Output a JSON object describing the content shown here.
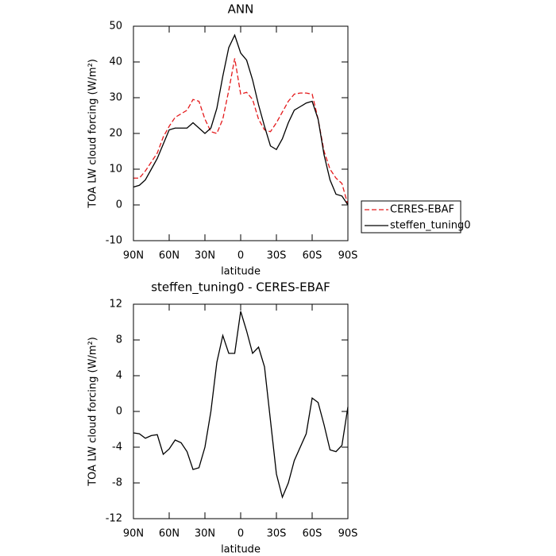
{
  "chart_data": [
    {
      "type": "line",
      "title": "ANN",
      "xlabel": "latitude",
      "ylabel": "TOA LW cloud forcing (W/m²)",
      "x": [
        90,
        85,
        80,
        75,
        70,
        65,
        60,
        55,
        50,
        45,
        40,
        35,
        30,
        25,
        20,
        15,
        10,
        5,
        0,
        -5,
        -10,
        -15,
        -20,
        -25,
        -30,
        -35,
        -40,
        -45,
        -50,
        -55,
        -60,
        -65,
        -70,
        -75,
        -80,
        -85,
        -90
      ],
      "series": [
        {
          "name": "CERES-EBAF",
          "color": "#e41a1c",
          "dashed": true,
          "values": [
            7.5,
            7.5,
            9.5,
            12,
            14.5,
            19,
            22,
            24.5,
            25.5,
            26.5,
            29.5,
            29,
            24,
            20.5,
            20,
            24,
            32,
            41,
            31,
            31.5,
            29.5,
            24,
            21,
            20.5,
            23,
            26,
            29,
            31,
            31.3,
            31.3,
            31,
            24,
            15,
            10,
            7.5,
            6,
            0
          ]
        },
        {
          "name": "steffen_tuning0",
          "color": "#000000",
          "dashed": false,
          "values": [
            5,
            5.5,
            7,
            10,
            13,
            17,
            21,
            21.5,
            21.5,
            21.5,
            23,
            21.5,
            20,
            21.5,
            27,
            36,
            44,
            47.5,
            42.5,
            40.5,
            35,
            28,
            22,
            16.5,
            15.5,
            18.5,
            23,
            26.5,
            27.5,
            28.5,
            29,
            24,
            14,
            7,
            3,
            2.5,
            0
          ]
        }
      ],
      "xlim": [
        90,
        -90
      ],
      "xticks": [
        {
          "value": 90,
          "label": "90N"
        },
        {
          "value": 60,
          "label": "60N"
        },
        {
          "value": 30,
          "label": "30N"
        },
        0,
        {
          "value": -30,
          "label": "30S"
        },
        {
          "value": -60,
          "label": "60S"
        },
        {
          "value": -90,
          "label": "90S"
        }
      ],
      "ylim": [
        -10,
        50
      ],
      "yticks": [
        -10,
        0,
        10,
        20,
        30,
        40,
        50
      ],
      "legend": "right"
    },
    {
      "type": "line",
      "title": "steffen_tuning0 - CERES-EBAF",
      "xlabel": "latitude",
      "ylabel": "TOA LW cloud forcing (W/m²)",
      "x": [
        90,
        85,
        80,
        75,
        70,
        65,
        60,
        55,
        50,
        45,
        40,
        35,
        30,
        25,
        20,
        15,
        10,
        5,
        0,
        -5,
        -10,
        -15,
        -20,
        -25,
        -30,
        -35,
        -40,
        -45,
        -50,
        -55,
        -60,
        -65,
        -70,
        -75,
        -80,
        -85,
        -90
      ],
      "color": "#000000",
      "values": [
        -2.4,
        -2.5,
        -3,
        -2.7,
        -2.6,
        -4.8,
        -4.2,
        -3.2,
        -3.5,
        -4.5,
        -6.5,
        -6.3,
        -4,
        0,
        5.5,
        8.5,
        6.5,
        6.5,
        11.2,
        9,
        6.5,
        7.2,
        5,
        -1,
        -7,
        -9.6,
        -8,
        -5.5,
        -4,
        -2.5,
        1.5,
        1,
        -1.5,
        -4.3,
        -4.5,
        -3.8,
        0.5
      ],
      "xlim": [
        90,
        -90
      ],
      "xticks": [
        {
          "value": 90,
          "label": "90N"
        },
        {
          "value": 60,
          "label": "60N"
        },
        {
          "value": 30,
          "label": "30N"
        },
        0,
        {
          "value": -30,
          "label": "30S"
        },
        {
          "value": -60,
          "label": "60S"
        },
        {
          "value": -90,
          "label": "90S"
        }
      ],
      "ylim": [
        -12,
        12
      ],
      "yticks": [
        -12,
        -8,
        -4,
        0,
        4,
        8,
        12
      ]
    }
  ]
}
